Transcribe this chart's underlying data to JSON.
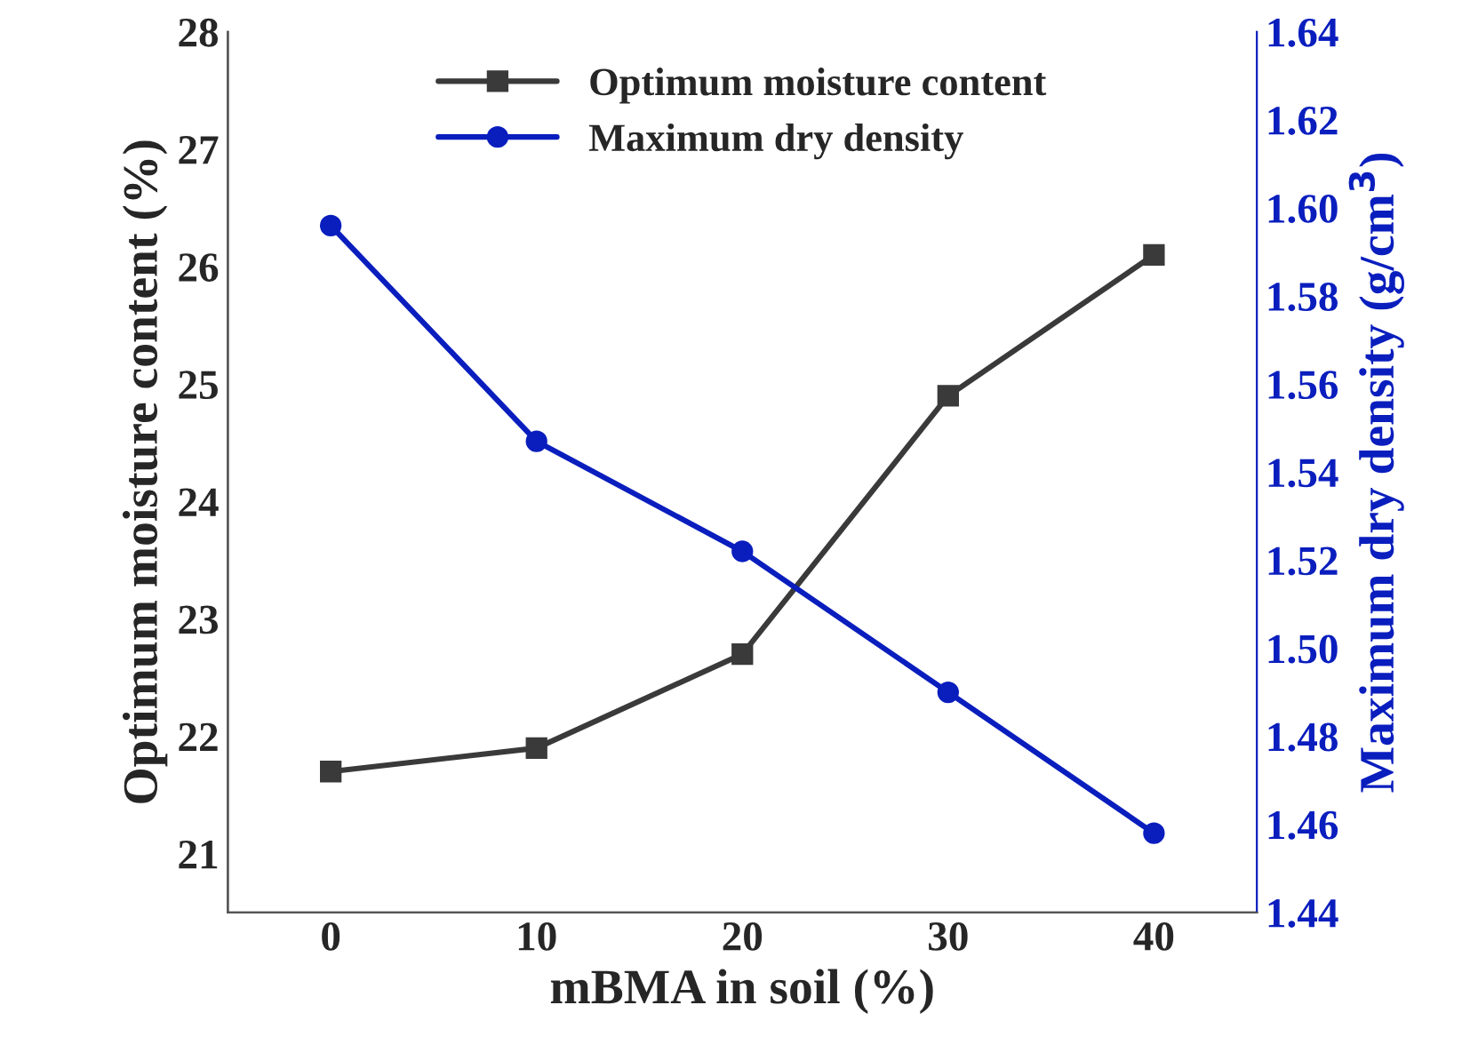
{
  "chart_data": {
    "type": "line",
    "xlabel": "mBMA in soil (%)",
    "ylabel": "Optimum moisture content (%)",
    "y2label": "Maximum dry density (g/cm$^{3}$)",
    "x": [
      0,
      10,
      20,
      30,
      40
    ],
    "series": [
      {
        "name": "Optimum moisture content",
        "color": "#3a3a3a",
        "marker": "square",
        "values": [
          21.7,
          21.9,
          22.7,
          24.9,
          26.1
        ]
      },
      {
        "name": "Maximum dry density",
        "color": "#0a1ebe",
        "marker": "circle",
        "axis": "y2",
        "values": [
          1.596,
          1.547,
          1.522,
          1.49,
          1.458
        ]
      }
    ],
    "xlim": [
      -5,
      45
    ],
    "xticks": [
      0,
      10,
      20,
      30,
      40
    ],
    "ylim": [
      20.5,
      28
    ],
    "yticks": [
      21,
      22,
      23,
      24,
      25,
      26,
      27,
      28
    ],
    "y2lim": [
      1.44,
      1.64
    ],
    "y2ticks": [
      1.44,
      1.46,
      1.48,
      {
        "value": 1.5,
        "label": "1.50"
      },
      1.52,
      1.54,
      1.56,
      1.58,
      {
        "value": 1.6,
        "label": "1.60"
      },
      1.62,
      1.64
    ],
    "grid": false,
    "legend": "top"
  }
}
